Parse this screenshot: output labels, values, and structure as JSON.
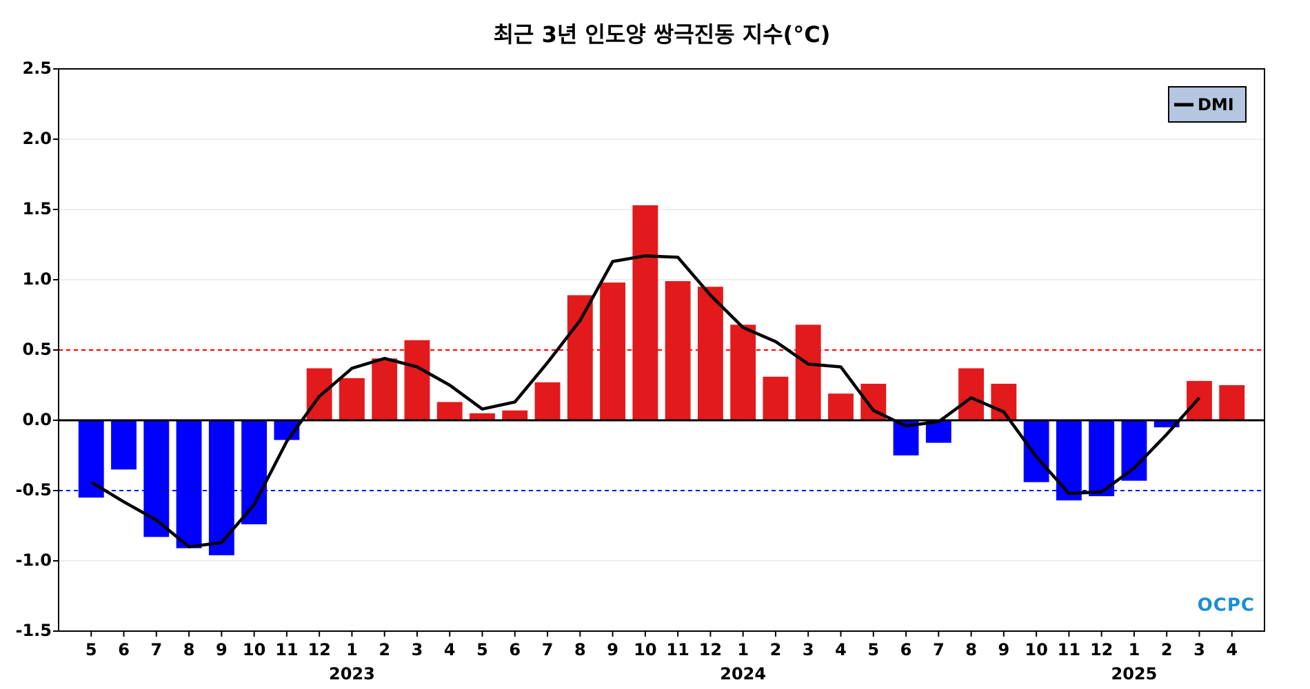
{
  "chart_data": {
    "type": "bar_line",
    "title": "최근 3년 인도양 쌍극진동 지수(°C)",
    "categories": [
      "5",
      "6",
      "7",
      "8",
      "9",
      "10",
      "11",
      "12",
      "1",
      "2",
      "3",
      "4",
      "5",
      "6",
      "7",
      "8",
      "9",
      "10",
      "11",
      "12",
      "1",
      "2",
      "3",
      "4",
      "5",
      "6",
      "7",
      "8",
      "9",
      "10",
      "11",
      "12",
      "1",
      "2",
      "3",
      "4"
    ],
    "year_labels": [
      "2023",
      "2024",
      "2025"
    ],
    "bar_values": [
      -0.55,
      -0.35,
      -0.83,
      -0.91,
      -0.96,
      -0.74,
      -0.14,
      0.37,
      0.3,
      0.44,
      0.57,
      0.13,
      0.05,
      0.07,
      0.27,
      0.89,
      0.98,
      1.53,
      0.99,
      0.95,
      0.68,
      0.31,
      0.68,
      0.19,
      0.26,
      -0.25,
      -0.16,
      0.37,
      0.26,
      -0.44,
      -0.57,
      -0.54,
      -0.43,
      -0.05,
      0.28,
      0.25
    ],
    "positive_color": "#e31a1c",
    "negative_color": "#0000ff",
    "series": [
      {
        "name": "DMI",
        "color": "#000000",
        "values": [
          -0.44,
          -0.58,
          -0.71,
          -0.9,
          -0.87,
          -0.6,
          -0.15,
          0.17,
          0.37,
          0.44,
          0.38,
          0.25,
          0.08,
          0.13,
          0.41,
          0.71,
          1.13,
          1.17,
          1.16,
          0.89,
          0.66,
          0.56,
          0.4,
          0.38,
          0.07,
          -0.04,
          -0.01,
          0.16,
          0.06,
          -0.26,
          -0.52,
          -0.51,
          -0.34,
          -0.1,
          0.16,
          null
        ]
      }
    ],
    "thresholds": [
      {
        "value": 0.5,
        "color": "#ff0000"
      },
      {
        "value": -0.5,
        "color": "#0000ff"
      }
    ],
    "ylim": [
      -1.5,
      2.5
    ],
    "yticks": [
      -1.5,
      {
        "value": -1,
        "label": "-1.0"
      },
      -0.5,
      {
        "value": 0,
        "label": "0.0"
      },
      0.5,
      {
        "value": 1,
        "label": "1.0"
      },
      1.5,
      {
        "value": 2,
        "label": "2.0"
      },
      2.5
    ],
    "grid": true,
    "legend": "upper right",
    "watermark": "OCPC"
  }
}
